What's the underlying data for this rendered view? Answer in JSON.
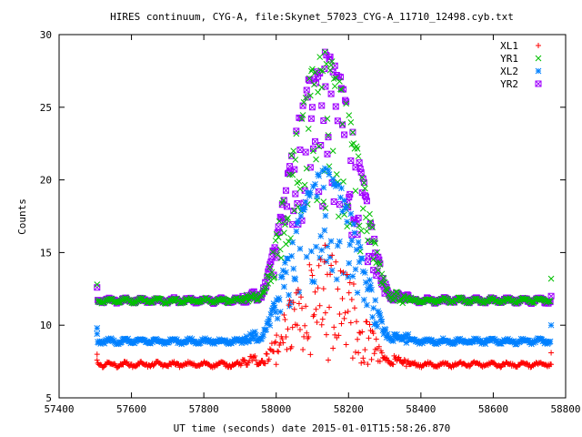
{
  "chart_data": {
    "type": "scatter",
    "title": "HIRES continuum, CYG-A, file:Skynet_57023_CYG-A_11710_12498.cyb.txt",
    "xlabel": "UT time (seconds) date 2015-01-01T15:58:26.870",
    "ylabel": "Counts",
    "xlim": [
      57400,
      58800
    ],
    "ylim": [
      5,
      30
    ],
    "xticks": [
      57400,
      57600,
      57800,
      58000,
      58200,
      58400,
      58600,
      58800
    ],
    "yticks": [
      5,
      10,
      15,
      20,
      25,
      30
    ],
    "legend_position": "top-right",
    "grid": false,
    "x_range_data": [
      57503,
      58762
    ],
    "peak_center_x": 58135,
    "peak_halfwidth_x": 190,
    "series": [
      {
        "name": "XL1",
        "marker": "plus",
        "color": "#ff0000",
        "baseline": 7.3,
        "peak_max": 15.8,
        "points_sample": [
          [
            57505,
            8.0
          ],
          [
            57505,
            7.6
          ],
          [
            58000,
            7.3
          ],
          [
            58135,
            15.5
          ],
          [
            58300,
            7.8
          ],
          [
            58760,
            7.3
          ],
          [
            58760,
            8.1
          ]
        ]
      },
      {
        "name": "YR1",
        "marker": "x",
        "color": "#00c000",
        "baseline": 11.7,
        "peak_max": 28.8,
        "points_sample": [
          [
            57505,
            12.8
          ],
          [
            58135,
            28.8
          ],
          [
            58760,
            13.2
          ]
        ]
      },
      {
        "name": "XL2",
        "marker": "star",
        "color": "#0080ff",
        "baseline": 8.9,
        "peak_max": 20.8,
        "points_sample": [
          [
            57505,
            9.8
          ],
          [
            57505,
            9.4
          ],
          [
            58135,
            20.8
          ],
          [
            58760,
            10.0
          ]
        ]
      },
      {
        "name": "YR2",
        "marker": "square",
        "color": "#a000ff",
        "baseline": 11.7,
        "peak_max": 28.8,
        "points_sample": [
          [
            57505,
            12.6
          ],
          [
            58135,
            28.8
          ],
          [
            58760,
            12.0
          ]
        ]
      }
    ]
  }
}
